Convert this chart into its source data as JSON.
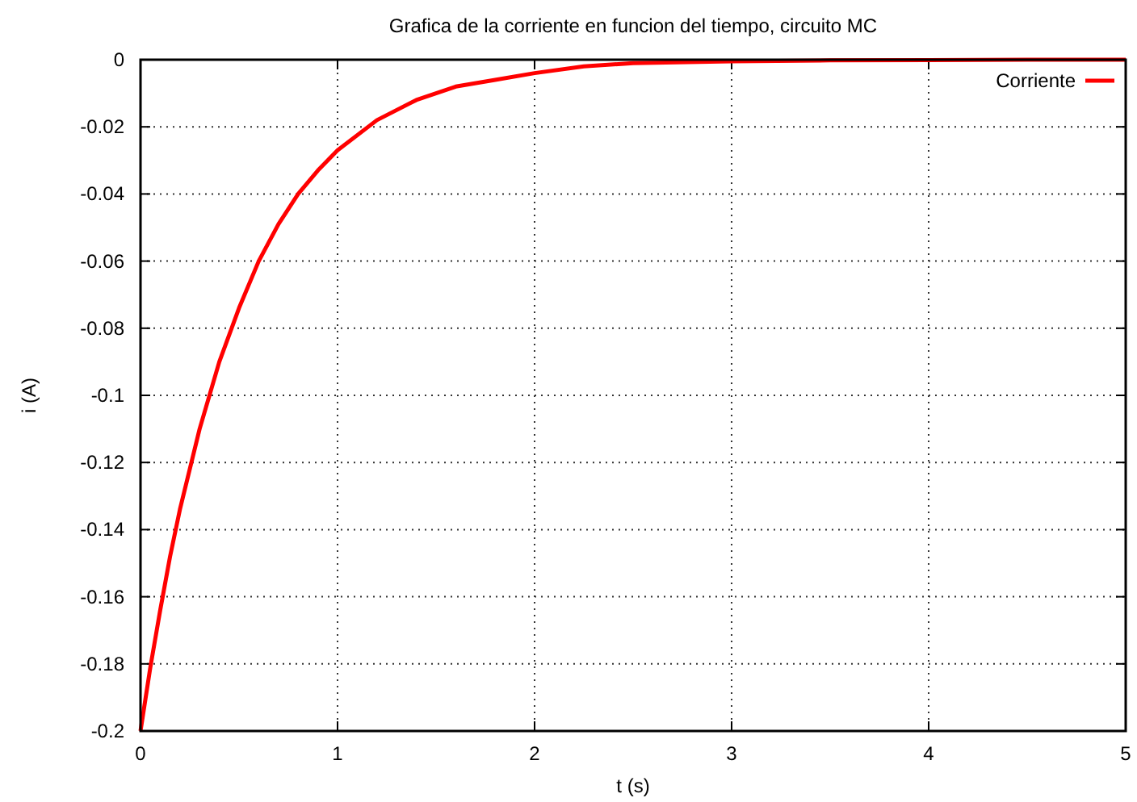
{
  "chart_data": {
    "type": "line",
    "title": "Grafica de la corriente en funcion del tiempo, circuito MC",
    "xlabel": "t (s)",
    "ylabel": "i (A)",
    "x": [
      0,
      0.05,
      0.1,
      0.15,
      0.2,
      0.3,
      0.4,
      0.5,
      0.6,
      0.7,
      0.8,
      0.9,
      1.0,
      1.2,
      1.4,
      1.6,
      1.8,
      2.0,
      2.25,
      2.5,
      3,
      3.5,
      4,
      4.5,
      5
    ],
    "series": [
      {
        "name": "Corriente",
        "color": "#ff0000",
        "values": [
          -0.2,
          -0.181,
          -0.164,
          -0.148,
          -0.134,
          -0.11,
          -0.09,
          -0.074,
          -0.06,
          -0.049,
          -0.04,
          -0.033,
          -0.027,
          -0.018,
          -0.012,
          -0.008,
          -0.006,
          -0.004,
          -0.002,
          -0.001,
          -0.0005,
          -0.0002,
          -0.0001,
          0,
          0
        ]
      }
    ],
    "xlim": [
      0,
      5
    ],
    "xticks": [
      0,
      1,
      2,
      3,
      4,
      5
    ],
    "ylim": [
      -0.2,
      0
    ],
    "yticks": [
      -0.2,
      -0.18,
      -0.16,
      -0.14,
      -0.12,
      -0.1,
      -0.08,
      -0.06,
      -0.04,
      -0.02,
      0
    ],
    "grid": true,
    "legend": "top right",
    "marker": "none",
    "line_style": "solid"
  }
}
